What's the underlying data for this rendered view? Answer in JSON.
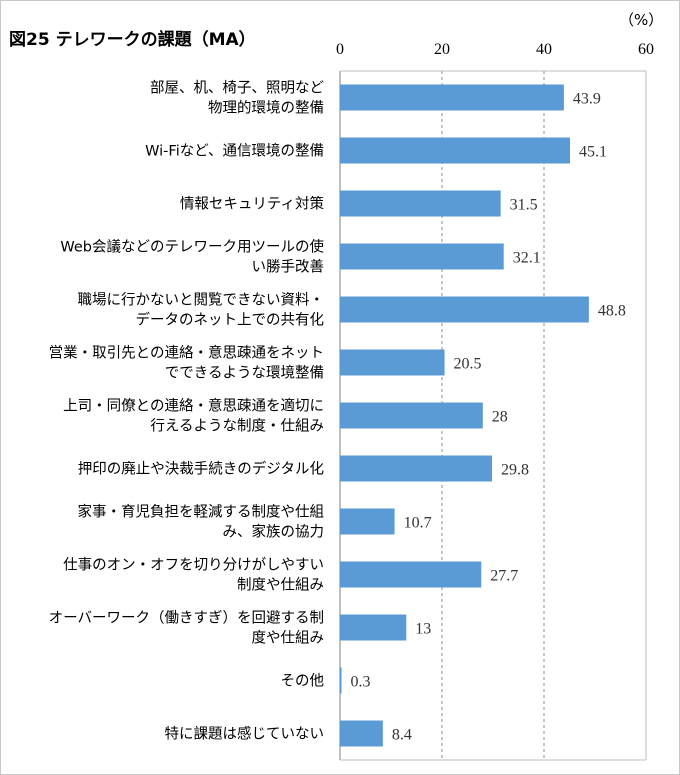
{
  "chart_data": {
    "type": "bar",
    "orientation": "horizontal",
    "title": "図25 テレワークの課題（MA）",
    "unit_label": "（%）",
    "xlim": [
      0,
      60
    ],
    "xticks": [
      0,
      20,
      40,
      60
    ],
    "grid": "vertical dashed",
    "bar_color": "#5B9BD5",
    "categories": [
      [
        "部屋、机、椅子、照明など",
        "物理的環境の整備"
      ],
      [
        "Wi-Fiなど、通信環境の整備"
      ],
      [
        "情報セキュリティ対策"
      ],
      [
        "Web会議などのテレワーク用ツールの使",
        "い勝手改善"
      ],
      [
        "職場に行かないと閲覧できない資料・",
        "データのネット上での共有化"
      ],
      [
        "営業・取引先との連絡・意思疎通をネット",
        "でできるような環境整備"
      ],
      [
        "上司・同僚との連絡・意思疎通を適切に",
        "行えるような制度・仕組み"
      ],
      [
        "押印の廃止や決裁手続きのデジタル化"
      ],
      [
        "家事・育児負担を軽減する制度や仕組",
        "み、家族の協力"
      ],
      [
        "仕事のオン・オフを切り分けがしやすい",
        "制度や仕組み"
      ],
      [
        "オーバーワーク（働きすぎ）を回避する制",
        "度や仕組み"
      ],
      [
        "その他"
      ],
      [
        "特に課題は感じていない"
      ]
    ],
    "values": [
      43.9,
      45.1,
      31.5,
      32.1,
      48.8,
      20.5,
      28,
      29.8,
      10.7,
      27.7,
      13,
      0.3,
      8.4
    ],
    "value_labels": [
      "43.9",
      "45.1",
      "31.5",
      "32.1",
      "48.8",
      "20.5",
      "28",
      "29.8",
      "10.7",
      "27.7",
      "13",
      "0.3",
      "8.4"
    ]
  }
}
